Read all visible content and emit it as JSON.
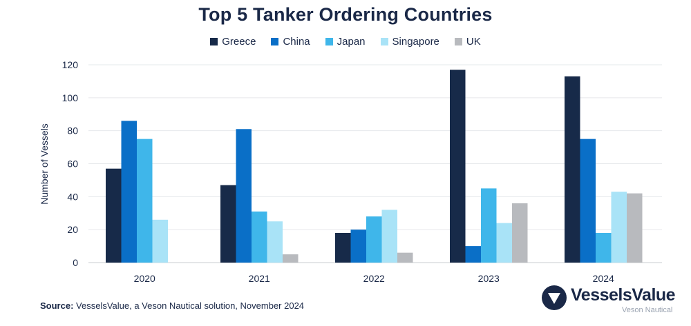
{
  "chart_data": {
    "type": "bar",
    "title": "Top 5 Tanker Ordering Countries",
    "xlabel": "",
    "ylabel": "Number of Vessels",
    "categories": [
      "2020",
      "2021",
      "2022",
      "2023",
      "2024"
    ],
    "ylim": [
      0,
      120
    ],
    "yticks": [
      "0",
      "20",
      "40",
      "60",
      "80",
      "100",
      "120"
    ],
    "grid": true,
    "legend_position": "top-center",
    "series": [
      {
        "name": "Greece",
        "color": "#172a49",
        "values": [
          57,
          47,
          18,
          117,
          113
        ]
      },
      {
        "name": "China",
        "color": "#0a6fc7",
        "values": [
          86,
          81,
          20,
          10,
          75
        ]
      },
      {
        "name": "Japan",
        "color": "#3fb6ea",
        "values": [
          75,
          31,
          28,
          45,
          18
        ]
      },
      {
        "name": "Singapore",
        "color": "#a9e3f7",
        "values": [
          26,
          25,
          32,
          24,
          43
        ]
      },
      {
        "name": "UK",
        "color": "#b8babe",
        "values": [
          0,
          5,
          6,
          36,
          42
        ]
      }
    ]
  },
  "source": {
    "label": "Source:",
    "text": " VesselsValue, a Veson Nautical solution, November 2024"
  },
  "logo": {
    "name": "VesselsValue",
    "subtitle": "Veson Nautical",
    "icon": "vesselsvalue-logo-icon"
  }
}
